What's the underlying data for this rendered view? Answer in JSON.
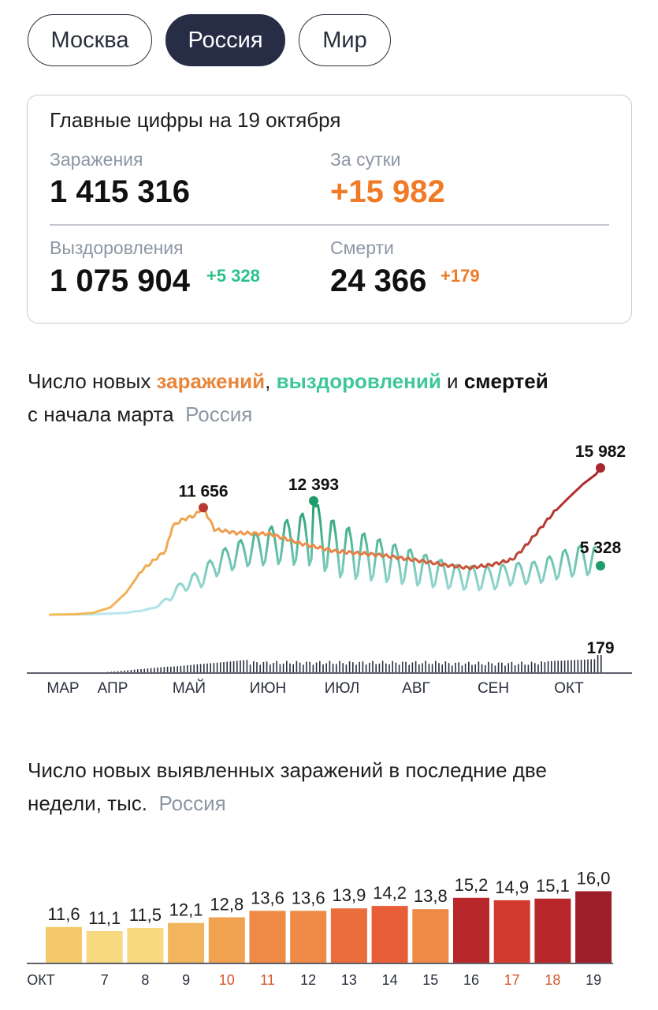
{
  "tabs": [
    {
      "label": "Москва",
      "active": false
    },
    {
      "label": "Россия",
      "active": true
    },
    {
      "label": "Мир",
      "active": false
    }
  ],
  "summary": {
    "title": "Главные цифры на 19 октября",
    "infections_label": "Заражения",
    "infections_value": "1 415 316",
    "daily_label": "За сутки",
    "daily_value": "+15 982",
    "recoveries_label": "Выздоровления",
    "recoveries_value": "1 075 904",
    "recoveries_delta": "+5 328",
    "deaths_label": "Смерти",
    "deaths_value": "24 366",
    "deaths_delta": "+179"
  },
  "colors": {
    "accent_orange": "#f07a25",
    "accent_green": "#2cc08a",
    "tab_active": "#262d45",
    "muted": "#8d96a4"
  },
  "line_chart": {
    "heading_part1": "Число новых ",
    "heading_infections": "заражений",
    "heading_comma": ", ",
    "heading_recoveries": "выздоровлений",
    "heading_and": " и ",
    "heading_deaths": "смертей",
    "heading_line2": "с начала марта",
    "heading_region": "Россия"
  },
  "bar_chart": {
    "heading_line1": "Число новых выявленных заражений в последние две",
    "heading_line2": "недели, тыс.",
    "heading_region": "Россия"
  },
  "chart_data": [
    {
      "type": "line",
      "x_start_label": "МАР",
      "x_tick_labels": [
        "МАР",
        "АПР",
        "МАЙ",
        "ИЮН",
        "ИЮЛ",
        "АВГ",
        "СЕН",
        "ОКТ"
      ],
      "series": [],
      "knots": {
        "infections": [
          [
            0,
            0
          ],
          [
            12,
            50
          ],
          [
            20,
            200
          ],
          [
            28,
            800
          ],
          [
            35,
            2400
          ],
          [
            42,
            4800
          ],
          [
            48,
            6000
          ],
          [
            53,
            7000
          ],
          [
            56,
            9600
          ],
          [
            60,
            10300
          ],
          [
            66,
            10800
          ],
          [
            70,
            11656
          ],
          [
            75,
            9300
          ],
          [
            85,
            8900
          ],
          [
            100,
            8800
          ],
          [
            115,
            7700
          ],
          [
            130,
            6900
          ],
          [
            150,
            6500
          ],
          [
            170,
            5800
          ],
          [
            180,
            5400
          ],
          [
            190,
            5100
          ],
          [
            200,
            5400
          ],
          [
            210,
            6000
          ],
          [
            215,
            7200
          ],
          [
            220,
            8600
          ],
          [
            228,
            10900
          ],
          [
            235,
            12600
          ],
          [
            242,
            14200
          ],
          [
            248,
            15300
          ],
          [
            250,
            15982
          ]
        ],
        "recovery_upper": [
          [
            0,
            0
          ],
          [
            20,
            30
          ],
          [
            35,
            200
          ],
          [
            45,
            600
          ],
          [
            50,
            1100
          ],
          [
            55,
            2300
          ],
          [
            60,
            3600
          ],
          [
            68,
            4800
          ],
          [
            78,
            7000
          ],
          [
            90,
            8500
          ],
          [
            105,
            10000
          ],
          [
            115,
            11000
          ],
          [
            120,
            12393
          ],
          [
            130,
            10000
          ],
          [
            150,
            8200
          ],
          [
            170,
            6600
          ],
          [
            185,
            5400
          ],
          [
            200,
            5200
          ],
          [
            210,
            5600
          ],
          [
            222,
            5800
          ],
          [
            232,
            6900
          ],
          [
            242,
            7600
          ],
          [
            248,
            7400
          ]
        ],
        "recovery_lower": [
          [
            0,
            0
          ],
          [
            20,
            30
          ],
          [
            35,
            200
          ],
          [
            45,
            500
          ],
          [
            50,
            900
          ],
          [
            55,
            1500
          ],
          [
            60,
            2500
          ],
          [
            68,
            2700
          ],
          [
            78,
            4400
          ],
          [
            90,
            5100
          ],
          [
            105,
            5300
          ],
          [
            120,
            5000
          ],
          [
            130,
            3800
          ],
          [
            150,
            3400
          ],
          [
            170,
            2900
          ],
          [
            185,
            2600
          ],
          [
            200,
            2500
          ],
          [
            210,
            3100
          ],
          [
            222,
            3300
          ],
          [
            232,
            3800
          ],
          [
            242,
            4200
          ],
          [
            248,
            4000
          ]
        ]
      },
      "recoveries_last": 5328,
      "labels": [
        {
          "text": "11 656",
          "series": "infections",
          "value": 11656
        },
        {
          "text": "12 393",
          "series": "recoveries",
          "value": 12393
        },
        {
          "text": "15 982",
          "series": "infections",
          "value": 15982
        },
        {
          "text": "5 328",
          "series": "recoveries",
          "value": 5328
        },
        {
          "text": "179",
          "series": "deaths",
          "value": 179
        }
      ],
      "colors": {
        "infections_start": "#f2c05b",
        "infections_end": "#a8262d",
        "recoveries_start": "#b8e8f0",
        "recoveries_end": "#1e9c6b",
        "deaths": "#2a2f3d"
      }
    },
    {
      "type": "bar",
      "categories": [
        "ОКТ",
        "7",
        "8",
        "9",
        "10",
        "11",
        "12",
        "13",
        "14",
        "15",
        "16",
        "17",
        "18",
        "19"
      ],
      "values": [
        11.6,
        11.1,
        11.5,
        12.1,
        12.8,
        13.6,
        13.6,
        13.9,
        14.2,
        13.8,
        15.2,
        14.9,
        15.1,
        16.0
      ],
      "value_labels": [
        "11,6",
        "11,1",
        "11,5",
        "12,1",
        "12,8",
        "13,6",
        "13,6",
        "13,9",
        "14,2",
        "13,8",
        "15,2",
        "14,9",
        "15,1",
        "16,0"
      ],
      "weekend_categories": [
        "10",
        "11",
        "17",
        "18"
      ],
      "colors": [
        "#f5c86b",
        "#f7d97f",
        "#f7d97f",
        "#f2b45c",
        "#f0a250",
        "#ee8a45",
        "#ee8a45",
        "#ea6e3c",
        "#e85e38",
        "#ee8a45",
        "#b8282a",
        "#d33a2e",
        "#b8282a",
        "#9e1d2a"
      ],
      "weekend_label_color": "#d9552c"
    }
  ]
}
